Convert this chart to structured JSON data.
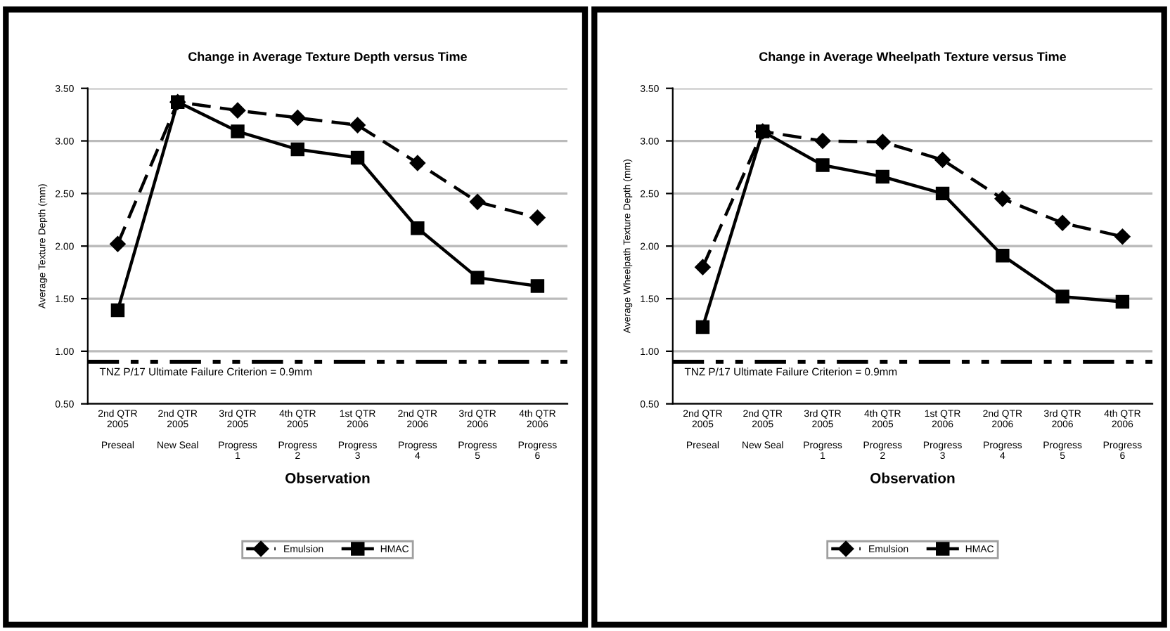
{
  "chart_data": [
    {
      "type": "line",
      "title": "Change in Average Texture Depth versus Time",
      "xlabel": "Observation",
      "ylabel": "Average Texture Depth (mm)",
      "categories": [
        "2nd QTR\n2005\n\nPreseal",
        "2nd QTR\n2005\n\nNew Seal",
        "3rd QTR\n2005\n\nProgress\n1",
        "4th QTR\n2005\n\nProgress\n2",
        "1st QTR\n2006\n\nProgress\n3",
        "2nd QTR\n2006\n\nProgress\n4",
        "3rd QTR\n2006\n\nProgress\n5",
        "4th QTR\n2006\n\nProgress\n6"
      ],
      "series": [
        {
          "name": "Emulsion",
          "color": "#000000",
          "line_style": "dashed",
          "marker": "diamond",
          "values": [
            2.02,
            3.37,
            3.29,
            3.22,
            3.15,
            2.79,
            2.42,
            2.27
          ]
        },
        {
          "name": "HMAC",
          "color": "#000000",
          "line_style": "solid",
          "marker": "square",
          "values": [
            1.39,
            3.37,
            3.09,
            2.92,
            2.84,
            2.17,
            1.7,
            1.62
          ]
        }
      ],
      "ylim": [
        0.5,
        3.5
      ],
      "yticks": [
        {
          "value": 0.5,
          "label": "0.50"
        },
        {
          "value": 1.0,
          "label": "1.00"
        },
        {
          "value": 1.5,
          "label": "1.50"
        },
        {
          "value": 2.0,
          "label": "2.00"
        },
        {
          "value": 2.5,
          "label": "2.50"
        },
        {
          "value": 3.0,
          "label": "3.00"
        },
        {
          "value": 3.5,
          "label": "3.50"
        }
      ],
      "ref_lines": [
        {
          "axis": "y",
          "value": 0.9,
          "label": "TNZ P/17 Ultimate Failure Criterion = 0.9mm",
          "color": "#000000",
          "line_style": "dashdot"
        }
      ],
      "grid": "y",
      "legend": "bottom"
    },
    {
      "type": "line",
      "title": "Change in Average Wheelpath Texture versus Time",
      "xlabel": "Observation",
      "ylabel": "Average Wheelpath Texture Depth (mm)",
      "categories": [
        "2nd QTR\n2005\n\nPreseal",
        "2nd QTR\n2005\n\nNew Seal",
        "3rd QTR\n2005\n\nProgress\n1",
        "4th QTR\n2005\n\nProgress\n2",
        "1st QTR\n2006\n\nProgress\n3",
        "2nd QTR\n2006\n\nProgress\n4",
        "3rd QTR\n2006\n\nProgress\n5",
        "4th QTR\n2006\n\nProgress\n6"
      ],
      "series": [
        {
          "name": "Emulsion",
          "color": "#000000",
          "line_style": "dashed",
          "marker": "diamond",
          "values": [
            1.8,
            3.09,
            3.0,
            2.99,
            2.82,
            2.45,
            2.22,
            2.09
          ]
        },
        {
          "name": "HMAC",
          "color": "#000000",
          "line_style": "solid",
          "marker": "square",
          "values": [
            1.23,
            3.09,
            2.77,
            2.66,
            2.5,
            1.91,
            1.52,
            1.47
          ]
        }
      ],
      "ylim": [
        0.5,
        3.5
      ],
      "yticks": [
        {
          "value": 0.5,
          "label": "0.50"
        },
        {
          "value": 1.0,
          "label": "1.00"
        },
        {
          "value": 1.5,
          "label": "1.50"
        },
        {
          "value": 2.0,
          "label": "2.00"
        },
        {
          "value": 2.5,
          "label": "2.50"
        },
        {
          "value": 3.0,
          "label": "3.00"
        },
        {
          "value": 3.5,
          "label": "3.50"
        }
      ],
      "ref_lines": [
        {
          "axis": "y",
          "value": 0.9,
          "label": "TNZ P/17 Ultimate Failure Criterion = 0.9mm",
          "color": "#000000",
          "line_style": "dashdot"
        }
      ],
      "grid": "y",
      "legend": "bottom"
    }
  ]
}
